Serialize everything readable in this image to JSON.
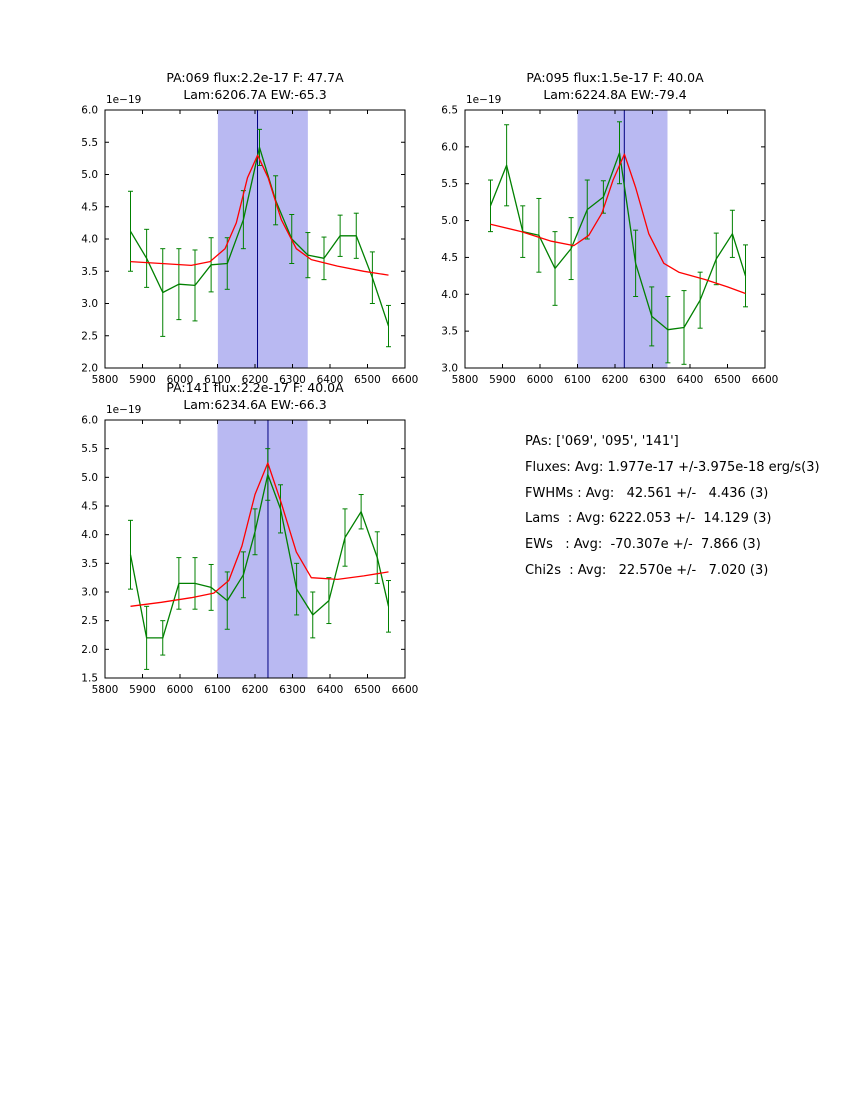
{
  "figure": {
    "background": "#ffffff"
  },
  "summary": {
    "lines": [
      "PAs: ['069', '095', '141']",
      "Fluxes: Avg: 1.977e-17 +/-3.975e-18 erg/s(3)",
      "FWHMs : Avg:   42.561 +/-   4.436 (3)",
      "Lams  : Avg: 6222.053 +/-  14.129 (3)",
      "EWs   : Avg:  -70.307e +/-  7.866 (3)",
      "Chi2s  : Avg:   22.570e +/-   7.020 (3)"
    ]
  },
  "chart_data": [
    {
      "type": "line",
      "title": "PA:069 flux:2.2e-17 F: 47.7A",
      "subtitle": "Lam:6206.7A EW:-65.3",
      "offset_text": "1e−19",
      "xlim": [
        5800,
        6600
      ],
      "ylim": [
        2.0,
        6.0
      ],
      "xticks": [
        5800,
        5900,
        6000,
        6100,
        6200,
        6300,
        6400,
        6500,
        6600
      ],
      "yticks": [
        2.0,
        2.5,
        3.0,
        3.5,
        4.0,
        4.5,
        5.0,
        5.5,
        6.0
      ],
      "band": {
        "x0": 6101,
        "x1": 6341,
        "color": "#b9b9f2"
      },
      "center_line": {
        "x": 6206.7,
        "color": "#000080"
      },
      "series": [
        {
          "name": "spectrum",
          "color": "#008000",
          "x": [
            5868,
            5911,
            5954,
            5997,
            6040,
            6083,
            6126,
            6169,
            6212,
            6255,
            6298,
            6341,
            6384,
            6427,
            6470,
            6513,
            6556
          ],
          "y": [
            4.12,
            3.7,
            3.17,
            3.3,
            3.28,
            3.6,
            3.62,
            4.3,
            5.42,
            4.6,
            4.0,
            3.75,
            3.7,
            4.05,
            4.05,
            3.4,
            2.65
          ],
          "yerr": [
            0.62,
            0.45,
            0.68,
            0.55,
            0.55,
            0.42,
            0.4,
            0.45,
            0.28,
            0.38,
            0.38,
            0.35,
            0.33,
            0.32,
            0.35,
            0.4,
            0.32
          ]
        },
        {
          "name": "fit",
          "color": "#ff0000",
          "x": [
            5868,
            5950,
            6030,
            6080,
            6120,
            6150,
            6180,
            6207,
            6235,
            6270,
            6310,
            6350,
            6420,
            6490,
            6556
          ],
          "y": [
            3.65,
            3.62,
            3.59,
            3.65,
            3.85,
            4.25,
            4.95,
            5.3,
            4.95,
            4.3,
            3.85,
            3.68,
            3.58,
            3.5,
            3.44
          ]
        }
      ]
    },
    {
      "type": "line",
      "title": "PA:095 flux:1.5e-17 F: 40.0A",
      "subtitle": "Lam:6224.8A EW:-79.4",
      "offset_text": "1e−19",
      "xlim": [
        5800,
        6600
      ],
      "ylim": [
        3.0,
        6.5
      ],
      "xticks": [
        5800,
        5900,
        6000,
        6100,
        6200,
        6300,
        6400,
        6500,
        6600
      ],
      "yticks": [
        3.0,
        3.5,
        4.0,
        4.5,
        5.0,
        5.5,
        6.0,
        6.5
      ],
      "band": {
        "x0": 6100,
        "x1": 6340,
        "color": "#b9b9f2"
      },
      "center_line": {
        "x": 6224.8,
        "color": "#000080"
      },
      "series": [
        {
          "name": "spectrum",
          "color": "#008000",
          "x": [
            5868,
            5911,
            5954,
            5997,
            6040,
            6083,
            6126,
            6169,
            6212,
            6255,
            6298,
            6341,
            6384,
            6427,
            6470,
            6513,
            6548
          ],
          "y": [
            5.2,
            5.75,
            4.85,
            4.8,
            4.35,
            4.62,
            5.15,
            5.32,
            5.92,
            4.42,
            3.7,
            3.52,
            3.55,
            3.92,
            4.48,
            4.82,
            4.25
          ],
          "yerr": [
            0.35,
            0.55,
            0.35,
            0.5,
            0.5,
            0.42,
            0.4,
            0.22,
            0.42,
            0.45,
            0.4,
            0.45,
            0.5,
            0.38,
            0.35,
            0.32,
            0.42
          ]
        },
        {
          "name": "fit",
          "color": "#ff0000",
          "x": [
            5868,
            5950,
            6030,
            6090,
            6130,
            6165,
            6195,
            6225,
            6255,
            6290,
            6330,
            6370,
            6440,
            6500,
            6548
          ],
          "y": [
            4.95,
            4.85,
            4.72,
            4.66,
            4.8,
            5.1,
            5.55,
            5.9,
            5.45,
            4.82,
            4.42,
            4.3,
            4.2,
            4.1,
            4.01
          ]
        }
      ]
    },
    {
      "type": "line",
      "title": "PA:141 flux:2.2e-17 F: 40.0A",
      "subtitle": "Lam:6234.6A EW:-66.3",
      "offset_text": "1e−19",
      "xlim": [
        5800,
        6600
      ],
      "ylim": [
        1.5,
        6.0
      ],
      "xticks": [
        5800,
        5900,
        6000,
        6100,
        6200,
        6300,
        6400,
        6500,
        6600
      ],
      "yticks": [
        1.5,
        2.0,
        2.5,
        3.0,
        3.5,
        4.0,
        4.5,
        5.0,
        5.5,
        6.0
      ],
      "band": {
        "x0": 6100,
        "x1": 6340,
        "color": "#b9b9f2"
      },
      "center_line": {
        "x": 6234.6,
        "color": "#000080"
      },
      "series": [
        {
          "name": "spectrum",
          "color": "#008000",
          "x": [
            5868,
            5911,
            5954,
            5997,
            6040,
            6083,
            6126,
            6169,
            6200,
            6234,
            6268,
            6311,
            6354,
            6397,
            6440,
            6483,
            6526,
            6556
          ],
          "y": [
            3.65,
            2.2,
            2.2,
            3.15,
            3.15,
            3.08,
            2.85,
            3.3,
            4.05,
            5.05,
            4.45,
            3.05,
            2.6,
            2.85,
            3.95,
            4.4,
            3.6,
            2.75
          ],
          "yerr": [
            0.6,
            0.55,
            0.3,
            0.45,
            0.45,
            0.4,
            0.5,
            0.4,
            0.4,
            0.45,
            0.42,
            0.45,
            0.4,
            0.4,
            0.5,
            0.3,
            0.45,
            0.45
          ]
        },
        {
          "name": "fit",
          "color": "#ff0000",
          "x": [
            5868,
            5950,
            6030,
            6090,
            6130,
            6165,
            6200,
            6234,
            6270,
            6310,
            6350,
            6420,
            6490,
            6556
          ],
          "y": [
            2.75,
            2.82,
            2.9,
            2.98,
            3.2,
            3.8,
            4.7,
            5.25,
            4.55,
            3.7,
            3.25,
            3.22,
            3.28,
            3.35
          ]
        }
      ]
    }
  ]
}
